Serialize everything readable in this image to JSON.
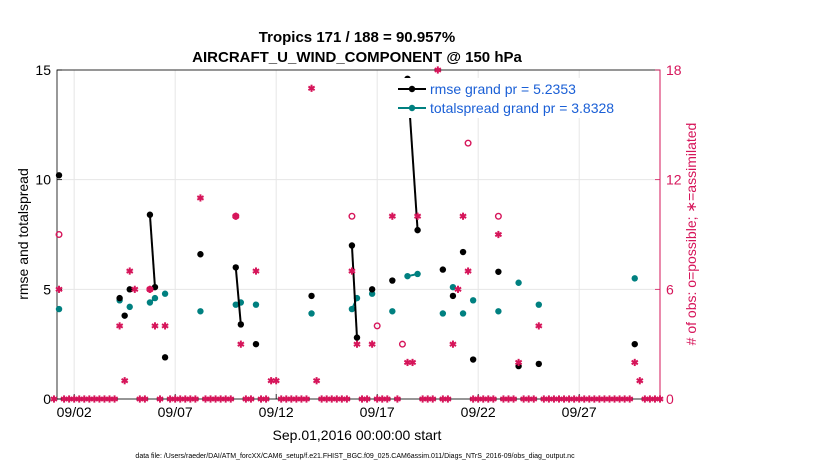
{
  "colors": {
    "rmse": "#000000",
    "totalspread": "#008080",
    "obs": "#d6155a",
    "legend_text": "#1a5fd6",
    "grid": "#e6e6e6"
  },
  "chart_data": {
    "type": "line",
    "title": "Tropics 171 / 188 = 90.957%",
    "subtitle": "AIRCRAFT_U_WIND_COMPONENT @ 150 hPa",
    "xlabel": "Sep.01,2016 00:00:00 start",
    "ylabel_left": "rmse and totalspread",
    "ylabel_right": "# of obs: o=possible; ∗=assimilated",
    "footnote": "data file: /Users/raeder/DAI/ATM_forcXX/CAM6_setup/f.e21.FHIST_BGC.f09_025.CAM6assim.011/Diags_NTrS_2016-09/obs_diag_output.nc",
    "xlim": [
      1.15,
      31.0
    ],
    "ylim_left": [
      0,
      15
    ],
    "ylim_right": [
      0,
      18
    ],
    "x_ticks": [
      {
        "x": 2,
        "label": "09/02"
      },
      {
        "x": 7,
        "label": "09/07"
      },
      {
        "x": 12,
        "label": "09/12"
      },
      {
        "x": 17,
        "label": "09/17"
      },
      {
        "x": 22,
        "label": "09/22"
      },
      {
        "x": 27,
        "label": "09/27"
      }
    ],
    "y_ticks_left": [
      0,
      5,
      10,
      15
    ],
    "y_ticks_right": [
      0,
      6,
      12,
      18
    ],
    "legend": [
      {
        "label": "rmse grand pr = 5.2353",
        "series": "rmse"
      },
      {
        "label": "totalspread grand pr = 3.8328",
        "series": "totalspread"
      }
    ],
    "legend_position": "top-right",
    "grid": true,
    "rmse": [
      [
        [
          1.25,
          10.2
        ]
      ],
      [
        [
          4.25,
          4.6
        ]
      ],
      [
        [
          4.5,
          3.8
        ]
      ],
      [
        [
          4.75,
          5.0
        ]
      ],
      [
        [
          5.75,
          8.4
        ],
        [
          6.0,
          5.1
        ]
      ],
      [
        [
          6.5,
          1.9
        ]
      ],
      [
        [
          8.25,
          6.6
        ]
      ],
      [
        [
          10.0,
          6.0
        ],
        [
          10.25,
          3.4
        ]
      ],
      [
        [
          11.0,
          2.5
        ]
      ],
      [
        [
          13.75,
          4.7
        ]
      ],
      [
        [
          15.75,
          7.0
        ],
        [
          16.0,
          2.8
        ]
      ],
      [
        [
          16.75,
          5.0
        ]
      ],
      [
        [
          17.75,
          5.4
        ]
      ],
      [
        [
          18.5,
          14.6
        ],
        [
          19.0,
          7.7
        ]
      ],
      [
        [
          20.25,
          5.9
        ]
      ],
      [
        [
          20.75,
          4.7
        ]
      ],
      [
        [
          21.25,
          6.7
        ]
      ],
      [
        [
          21.75,
          1.8
        ]
      ],
      [
        [
          23.0,
          5.8
        ]
      ],
      [
        [
          24.0,
          1.5
        ]
      ],
      [
        [
          25.0,
          1.6
        ]
      ],
      [
        [
          29.75,
          2.5
        ]
      ]
    ],
    "totalspread": [
      [
        [
          1.25,
          4.1
        ]
      ],
      [
        [
          4.25,
          4.5
        ]
      ],
      [
        [
          4.75,
          4.2
        ]
      ],
      [
        [
          5.75,
          4.4
        ],
        [
          6.0,
          4.6
        ]
      ],
      [
        [
          6.5,
          4.8
        ]
      ],
      [
        [
          8.25,
          4.0
        ]
      ],
      [
        [
          10.0,
          4.3
        ],
        [
          10.25,
          4.4
        ]
      ],
      [
        [
          11.0,
          4.3
        ]
      ],
      [
        [
          13.75,
          3.9
        ]
      ],
      [
        [
          15.75,
          4.1
        ],
        [
          16.0,
          4.6
        ]
      ],
      [
        [
          16.75,
          4.8
        ]
      ],
      [
        [
          17.75,
          4.0
        ]
      ],
      [
        [
          18.5,
          5.6
        ],
        [
          19.0,
          5.7
        ]
      ],
      [
        [
          20.25,
          3.9
        ]
      ],
      [
        [
          20.75,
          5.1
        ]
      ],
      [
        [
          21.25,
          3.9
        ]
      ],
      [
        [
          21.75,
          4.5
        ]
      ],
      [
        [
          23.0,
          4.0
        ]
      ],
      [
        [
          24.0,
          5.3
        ]
      ],
      [
        [
          25.0,
          4.3
        ]
      ],
      [
        [
          29.75,
          5.5
        ]
      ]
    ],
    "obs_possible": [
      {
        "x": 1.25,
        "v": 9.0
      },
      {
        "x": 5.75,
        "v": 6.0
      },
      {
        "x": 10.0,
        "v": 10.0
      },
      {
        "x": 15.75,
        "v": 10.0
      },
      {
        "x": 17.0,
        "v": 4.0
      },
      {
        "x": 18.25,
        "v": 3.0
      },
      {
        "x": 21.5,
        "v": 14.0
      },
      {
        "x": 23.0,
        "v": 10.0
      }
    ],
    "obs_assimilated": [
      {
        "x": 1.0,
        "v": 0
      },
      {
        "x": 1.25,
        "v": 6.0
      },
      {
        "x": 1.5,
        "v": 0
      },
      {
        "x": 1.75,
        "v": 0
      },
      {
        "x": 2.0,
        "v": 0
      },
      {
        "x": 2.25,
        "v": 0
      },
      {
        "x": 2.5,
        "v": 0
      },
      {
        "x": 2.75,
        "v": 0
      },
      {
        "x": 3.0,
        "v": 0
      },
      {
        "x": 3.25,
        "v": 0
      },
      {
        "x": 3.5,
        "v": 0
      },
      {
        "x": 3.75,
        "v": 0
      },
      {
        "x": 4.0,
        "v": 0
      },
      {
        "x": 4.25,
        "v": 4.0
      },
      {
        "x": 4.5,
        "v": 1.0
      },
      {
        "x": 4.75,
        "v": 7.0
      },
      {
        "x": 5.0,
        "v": 6.0
      },
      {
        "x": 5.25,
        "v": 0
      },
      {
        "x": 5.5,
        "v": 0
      },
      {
        "x": 5.75,
        "v": 6.0
      },
      {
        "x": 6.0,
        "v": 4.0
      },
      {
        "x": 6.25,
        "v": 0
      },
      {
        "x": 6.5,
        "v": 4.0
      },
      {
        "x": 6.75,
        "v": 0
      },
      {
        "x": 7.0,
        "v": 0
      },
      {
        "x": 7.25,
        "v": 0
      },
      {
        "x": 7.5,
        "v": 0
      },
      {
        "x": 7.75,
        "v": 0
      },
      {
        "x": 8.0,
        "v": 0
      },
      {
        "x": 8.25,
        "v": 11.0
      },
      {
        "x": 8.5,
        "v": 0
      },
      {
        "x": 8.75,
        "v": 0
      },
      {
        "x": 9.0,
        "v": 0
      },
      {
        "x": 9.25,
        "v": 0
      },
      {
        "x": 9.5,
        "v": 0
      },
      {
        "x": 9.75,
        "v": 0
      },
      {
        "x": 10.0,
        "v": 10.0
      },
      {
        "x": 10.25,
        "v": 3.0
      },
      {
        "x": 10.5,
        "v": 0
      },
      {
        "x": 10.75,
        "v": 0
      },
      {
        "x": 11.0,
        "v": 7.0
      },
      {
        "x": 11.25,
        "v": 0
      },
      {
        "x": 11.5,
        "v": 0
      },
      {
        "x": 11.75,
        "v": 1.0
      },
      {
        "x": 12.0,
        "v": 1.0
      },
      {
        "x": 12.25,
        "v": 0
      },
      {
        "x": 12.5,
        "v": 0
      },
      {
        "x": 12.75,
        "v": 0
      },
      {
        "x": 13.0,
        "v": 0
      },
      {
        "x": 13.25,
        "v": 0
      },
      {
        "x": 13.5,
        "v": 0
      },
      {
        "x": 13.75,
        "v": 17.0
      },
      {
        "x": 14.0,
        "v": 1.0
      },
      {
        "x": 14.25,
        "v": 0
      },
      {
        "x": 14.5,
        "v": 0
      },
      {
        "x": 14.75,
        "v": 0
      },
      {
        "x": 15.0,
        "v": 0
      },
      {
        "x": 15.25,
        "v": 0
      },
      {
        "x": 15.5,
        "v": 0
      },
      {
        "x": 15.75,
        "v": 7.0
      },
      {
        "x": 16.0,
        "v": 3.0
      },
      {
        "x": 16.25,
        "v": 0
      },
      {
        "x": 16.5,
        "v": 0
      },
      {
        "x": 16.75,
        "v": 3.0
      },
      {
        "x": 17.0,
        "v": 0
      },
      {
        "x": 17.25,
        "v": 0
      },
      {
        "x": 17.5,
        "v": 0
      },
      {
        "x": 17.75,
        "v": 10.0
      },
      {
        "x": 18.0,
        "v": 0
      },
      {
        "x": 18.5,
        "v": 2.0
      },
      {
        "x": 18.75,
        "v": 2.0
      },
      {
        "x": 19.0,
        "v": 10.0
      },
      {
        "x": 19.25,
        "v": 0
      },
      {
        "x": 19.5,
        "v": 0
      },
      {
        "x": 19.75,
        "v": 0
      },
      {
        "x": 20.0,
        "v": 18.0
      },
      {
        "x": 20.25,
        "v": 0
      },
      {
        "x": 20.5,
        "v": 0
      },
      {
        "x": 20.75,
        "v": 3.0
      },
      {
        "x": 21.0,
        "v": 6.0
      },
      {
        "x": 21.25,
        "v": 10.0
      },
      {
        "x": 21.5,
        "v": 7.0
      },
      {
        "x": 21.75,
        "v": 0
      },
      {
        "x": 22.0,
        "v": 0
      },
      {
        "x": 22.25,
        "v": 0
      },
      {
        "x": 22.5,
        "v": 0
      },
      {
        "x": 22.75,
        "v": 0
      },
      {
        "x": 23.0,
        "v": 9.0
      },
      {
        "x": 23.25,
        "v": 0
      },
      {
        "x": 23.5,
        "v": 0
      },
      {
        "x": 23.75,
        "v": 0
      },
      {
        "x": 24.0,
        "v": 2.0
      },
      {
        "x": 24.25,
        "v": 0
      },
      {
        "x": 24.5,
        "v": 0
      },
      {
        "x": 24.75,
        "v": 0
      },
      {
        "x": 25.0,
        "v": 4.0
      },
      {
        "x": 25.25,
        "v": 0
      },
      {
        "x": 25.5,
        "v": 0
      },
      {
        "x": 25.75,
        "v": 0
      },
      {
        "x": 26.0,
        "v": 0
      },
      {
        "x": 26.25,
        "v": 0
      },
      {
        "x": 26.5,
        "v": 0
      },
      {
        "x": 26.75,
        "v": 0
      },
      {
        "x": 27.0,
        "v": 0
      },
      {
        "x": 27.25,
        "v": 0
      },
      {
        "x": 27.5,
        "v": 0
      },
      {
        "x": 27.75,
        "v": 0
      },
      {
        "x": 28.0,
        "v": 0
      },
      {
        "x": 28.25,
        "v": 0
      },
      {
        "x": 28.5,
        "v": 0
      },
      {
        "x": 28.75,
        "v": 0
      },
      {
        "x": 29.0,
        "v": 0
      },
      {
        "x": 29.25,
        "v": 0
      },
      {
        "x": 29.5,
        "v": 0
      },
      {
        "x": 29.75,
        "v": 2.0
      },
      {
        "x": 30.0,
        "v": 1.0
      },
      {
        "x": 30.25,
        "v": 0
      },
      {
        "x": 30.5,
        "v": 0
      },
      {
        "x": 30.75,
        "v": 0
      },
      {
        "x": 31.0,
        "v": 0
      }
    ]
  }
}
